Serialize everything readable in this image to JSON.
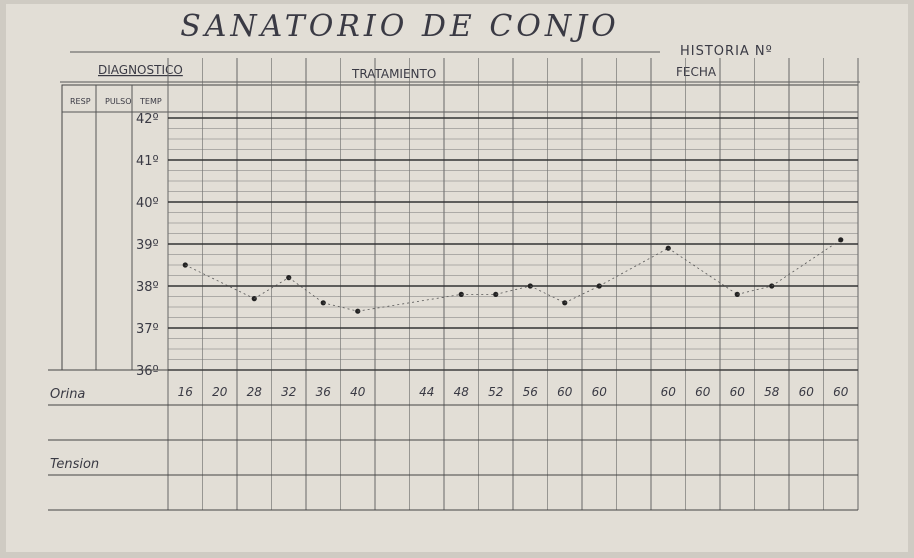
{
  "header": {
    "title": "SANATORIO DE CONJO",
    "historia": "HISTORIA Nº",
    "diagnostico": "DIAGNOSTICO",
    "tratamiento": "TRATAMIENTO",
    "fecha": "FECHA"
  },
  "columns": [
    "RESP",
    "PULSO",
    "TEMP"
  ],
  "temperature_scale": [
    "42º",
    "41º",
    "40º",
    "39º",
    "38º",
    "37º",
    "36º"
  ],
  "temperature": [
    38.5,
    null,
    37.7,
    38.2,
    37.6,
    37.4,
    null,
    null,
    37.8,
    37.8,
    38.0,
    37.6,
    38.0,
    null,
    38.9,
    null,
    37.8,
    38.0,
    null,
    39.1
  ],
  "rows": [
    {
      "label": "Orina",
      "values": [
        "16",
        "20",
        "28",
        "32",
        "36",
        "40",
        null,
        "44",
        "48",
        "52",
        "56",
        "60",
        "60",
        null,
        "60",
        "60",
        "60",
        "58",
        "60",
        "60"
      ]
    },
    {
      "label": "Tension"
    }
  ]
}
